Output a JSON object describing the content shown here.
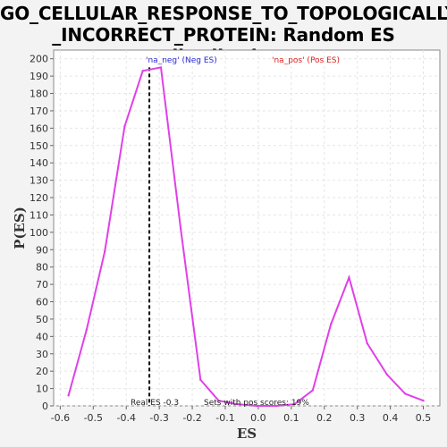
{
  "title_line1": "GO_CELLULAR_RESPONSE_TO_TOPOLOGICALLY",
  "title_line2": "_INCORRECT_PROTEIN: Random ES distribution",
  "chart_data": {
    "type": "line",
    "xlabel": "ES",
    "ylabel": "P(ES)",
    "xlim": [
      -0.62,
      0.55
    ],
    "ylim": [
      0,
      205
    ],
    "xticks": [
      -0.6,
      -0.5,
      -0.4,
      -0.3,
      -0.2,
      -0.1,
      0.0,
      0.1,
      0.2,
      0.3,
      0.4,
      0.5
    ],
    "xtick_labels": [
      "-0.6",
      "-0.5",
      "-0.4",
      "-0.3",
      "-0.2",
      "-0.1",
      "0.0",
      "0.1",
      "0.2",
      "0.3",
      "0.4",
      "0.5"
    ],
    "yticks": [
      0,
      10,
      20,
      30,
      40,
      50,
      60,
      70,
      80,
      90,
      100,
      110,
      120,
      130,
      140,
      150,
      160,
      170,
      180,
      190,
      200
    ],
    "grid": true,
    "series": [
      {
        "color": "#e040e8",
        "x": [
          -0.575,
          -0.52,
          -0.465,
          -0.405,
          -0.35,
          -0.295,
          -0.235,
          -0.175,
          -0.12,
          -0.065,
          -0.005,
          0.055,
          0.11,
          0.165,
          0.22,
          0.275,
          0.33,
          0.39,
          0.445,
          0.5
        ],
        "y": [
          6,
          44,
          89,
          161,
          193,
          195,
          102,
          15,
          3,
          1,
          0,
          0,
          1,
          9,
          47,
          74,
          36,
          18,
          7,
          3
        ]
      }
    ],
    "real_es": -0.33,
    "legend": [
      {
        "label": "'na_neg' (Neg ES)",
        "color": "#2a2ad8"
      },
      {
        "label": "'na_pos' (Pos ES)",
        "color": "#e02020"
      }
    ],
    "annotations": {
      "real_es": "Real ES -0.3",
      "pos_scores": "Sets with pos scores: 19%"
    }
  }
}
